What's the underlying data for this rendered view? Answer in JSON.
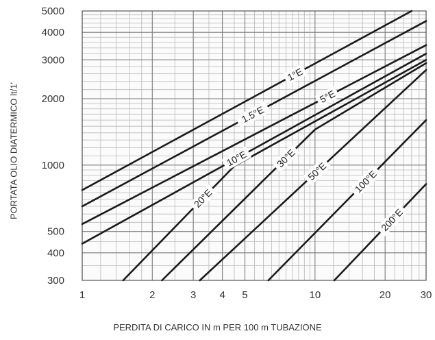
{
  "chart_data": {
    "type": "line",
    "xscale": "log",
    "yscale": "log",
    "xlim": [
      1,
      30
    ],
    "ylim": [
      300,
      5000
    ],
    "xlabel": "PERDITA DI CARICO IN m PER 100 m TUBAZIONE",
    "ylabel": "PORTATA OLIO DIATERMICO lt/1'",
    "x_ticks": [
      1,
      2,
      3,
      4,
      5,
      10,
      20,
      30
    ],
    "x_tick_labels": [
      "1",
      "2",
      "3",
      "4",
      "5",
      "10",
      "20",
      "30"
    ],
    "y_ticks": [
      300,
      400,
      500,
      1000,
      2000,
      3000,
      4000,
      5000
    ],
    "y_tick_labels": [
      "300",
      "400",
      "500",
      "1000",
      "2000",
      "3000",
      "4000",
      "5000"
    ],
    "grid": true,
    "colors": {
      "grid_major": "#7a7a7a",
      "grid_minor": "#b8b8b8",
      "curve": "#1a1a1a"
    },
    "series": [
      {
        "name": "1°E",
        "x": [
          1,
          26
        ],
        "y": [
          770,
          5000
        ]
      },
      {
        "name": "1.5°E",
        "x": [
          1,
          30
        ],
        "y": [
          650,
          4500
        ]
      },
      {
        "name": "5°E",
        "x": [
          1,
          30
        ],
        "y": [
          540,
          3500
        ]
      },
      {
        "name": "10°E",
        "x": [
          1,
          30
        ],
        "y": [
          440,
          3200
        ]
      },
      {
        "name": "20°E",
        "x": [
          1.5,
          4.5,
          30
        ],
        "y": [
          300,
          990,
          3000
        ]
      },
      {
        "name": "30°E",
        "x": [
          2.2,
          10,
          30
        ],
        "y": [
          300,
          1450,
          2900
        ]
      },
      {
        "name": "50°E",
        "x": [
          3.2,
          30
        ],
        "y": [
          300,
          2700
        ]
      },
      {
        "name": "100°E",
        "x": [
          6.3,
          30
        ],
        "y": [
          300,
          1600
        ]
      },
      {
        "name": "200°E",
        "x": [
          12.1,
          30
        ],
        "y": [
          300,
          820
        ]
      }
    ]
  }
}
